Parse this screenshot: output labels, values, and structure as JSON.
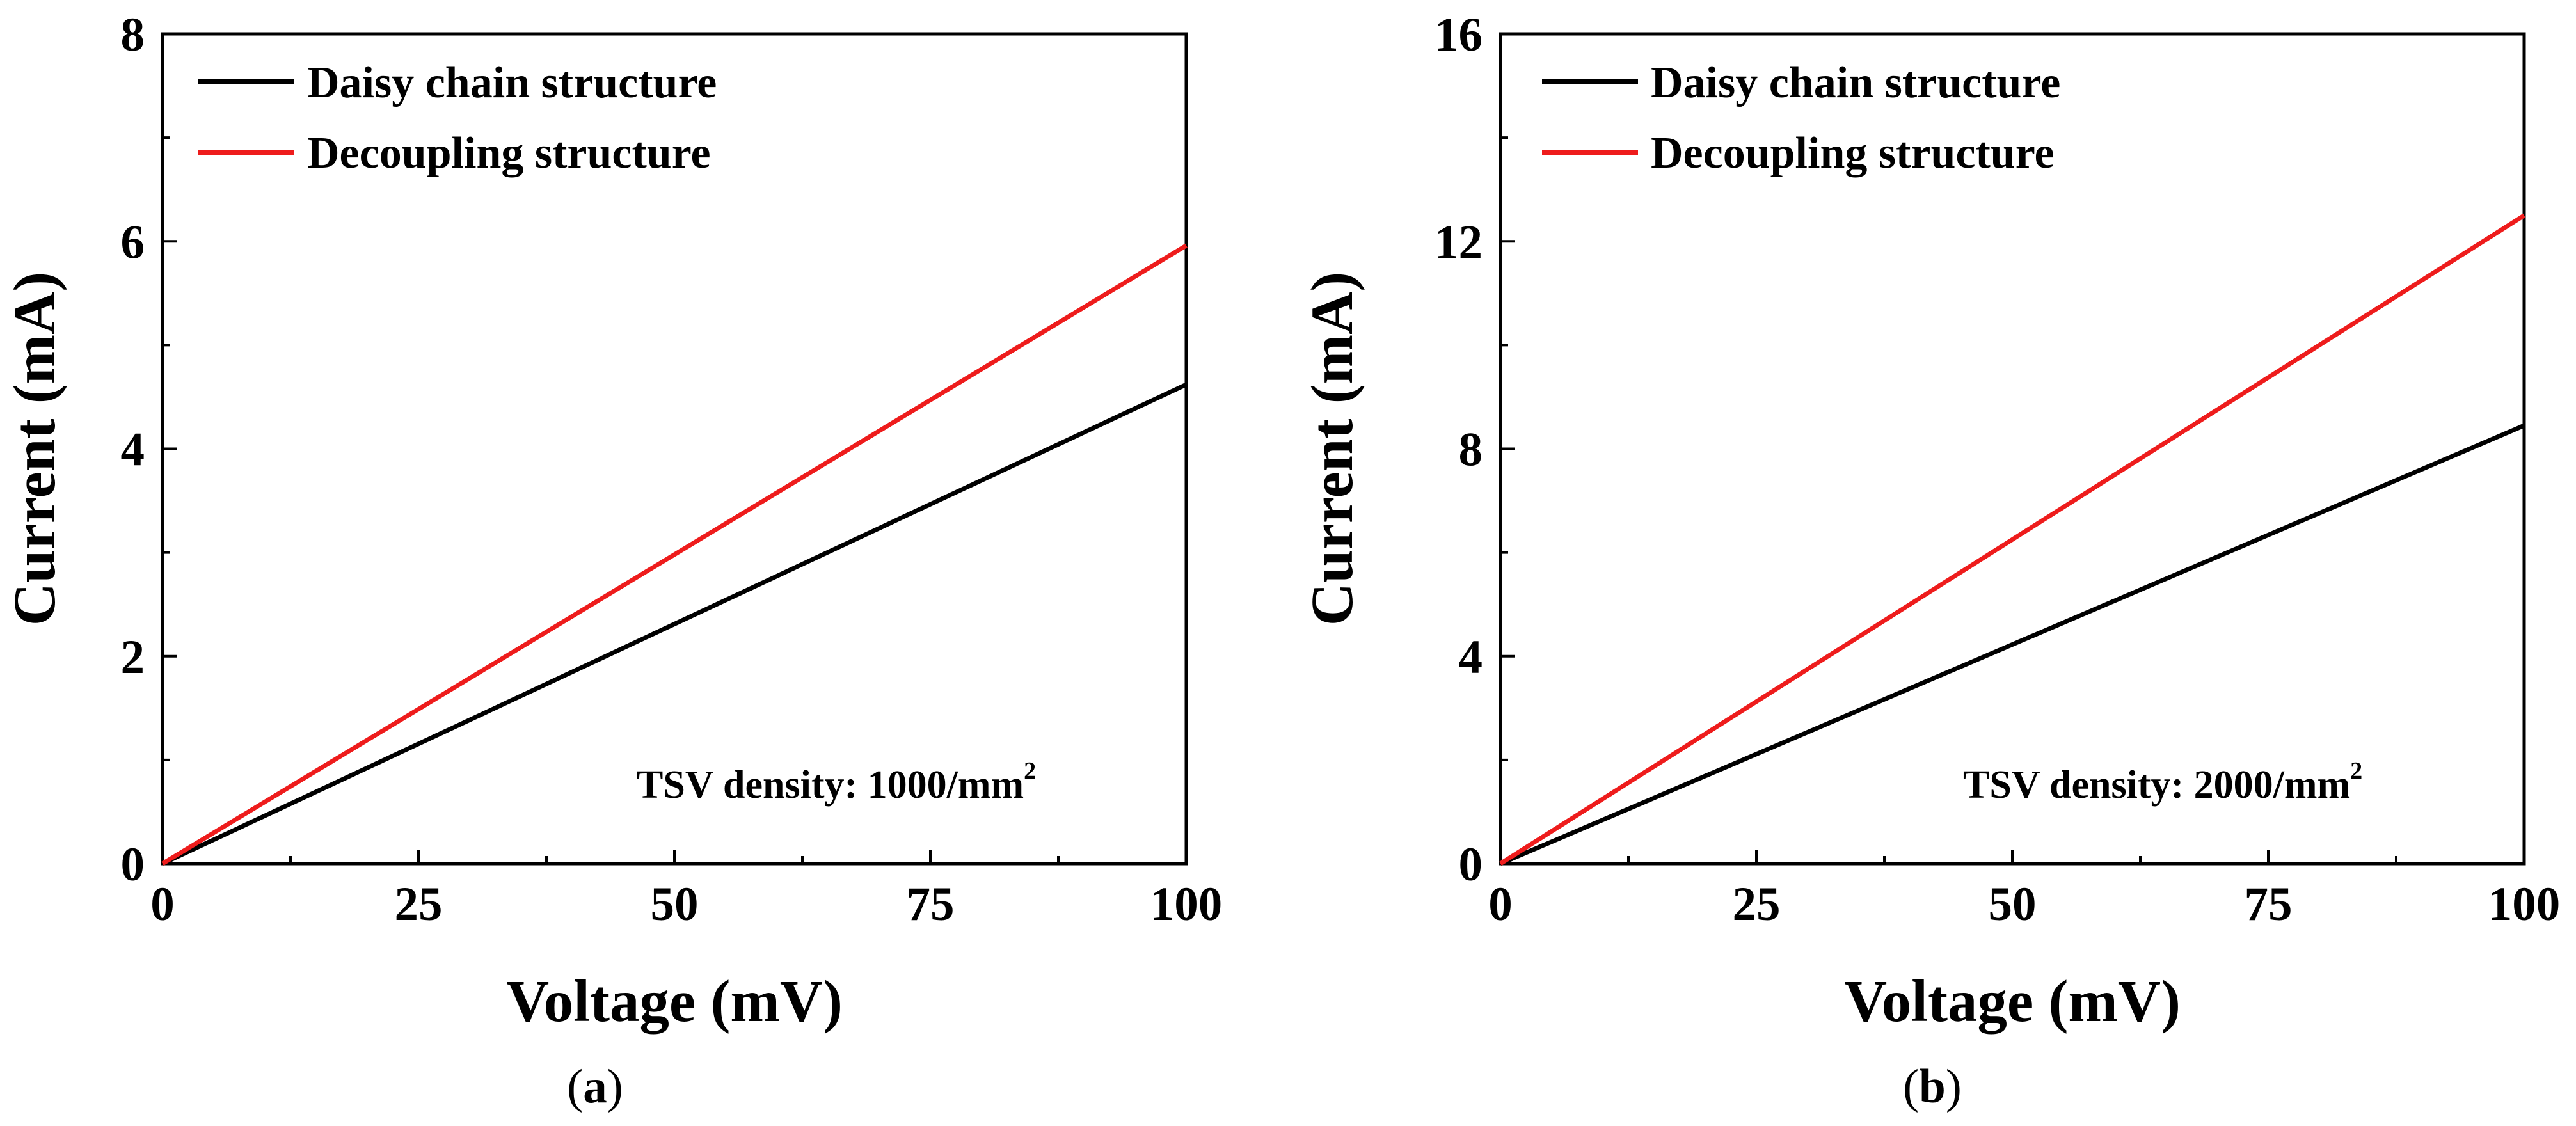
{
  "chart_data": [
    {
      "type": "line",
      "panel_label": "a",
      "xlabel": "Voltage (mV)",
      "ylabel": "Current (mA)",
      "xlim": [
        0,
        100
      ],
      "ylim": [
        0,
        8
      ],
      "xticks": [
        0,
        25,
        50,
        75,
        100
      ],
      "yticks": [
        0,
        2,
        4,
        6,
        8
      ],
      "xtick_labels": [
        "0",
        "25",
        "50",
        "75",
        "100"
      ],
      "ytick_labels": [
        "0",
        "2",
        "4",
        "6",
        "8"
      ],
      "x_minor_step": 12.5,
      "y_minor_step": 1,
      "legend_position": "top-left",
      "annotation": {
        "text": "TSV density: 1000/mm",
        "superscript": "2"
      },
      "series": [
        {
          "name": "Daisy chain structure",
          "color": "#000000",
          "x": [
            0,
            100
          ],
          "y": [
            0,
            4.62
          ]
        },
        {
          "name": "Decoupling structure",
          "color": "#ee1c1c",
          "x": [
            0,
            100
          ],
          "y": [
            0,
            5.96
          ]
        }
      ]
    },
    {
      "type": "line",
      "panel_label": "b",
      "xlabel": "Voltage (mV)",
      "ylabel": "Current (mA)",
      "xlim": [
        0,
        100
      ],
      "ylim": [
        0,
        16
      ],
      "xticks": [
        0,
        25,
        50,
        75,
        100
      ],
      "yticks": [
        0,
        4,
        8,
        12,
        16
      ],
      "xtick_labels": [
        "0",
        "25",
        "50",
        "75",
        "100"
      ],
      "ytick_labels": [
        "0",
        "4",
        "8",
        "12",
        "16"
      ],
      "x_minor_step": 12.5,
      "y_minor_step": 2,
      "legend_position": "top-left",
      "annotation": {
        "text": "TSV density: 2000/mm",
        "superscript": "2"
      },
      "series": [
        {
          "name": "Daisy chain structure",
          "color": "#000000",
          "x": [
            0,
            100
          ],
          "y": [
            0,
            8.45
          ]
        },
        {
          "name": "Decoupling structure",
          "color": "#ee1c1c",
          "x": [
            0,
            100
          ],
          "y": [
            0,
            12.5
          ]
        }
      ]
    }
  ]
}
